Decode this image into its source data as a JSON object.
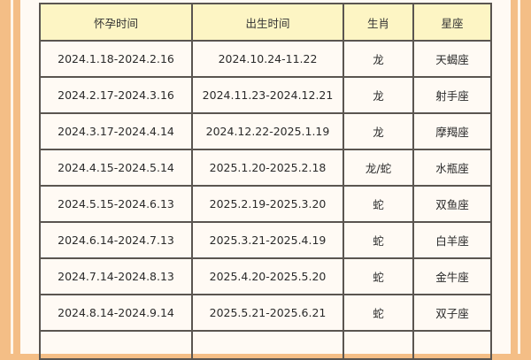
{
  "table": {
    "headers": [
      "怀孕时间",
      "出生时间",
      "生肖",
      "星座"
    ],
    "rows": [
      [
        "2024.1.18-2024.2.16",
        "2024.10.24-11.22",
        "龙",
        "天蝎座"
      ],
      [
        "2024.2.17-2024.3.16",
        "2024.11.23-2024.12.21",
        "龙",
        "射手座"
      ],
      [
        "2024.3.17-2024.4.14",
        "2024.12.22-2025.1.19",
        "龙",
        "摩羯座"
      ],
      [
        "2024.4.15-2024.5.14",
        "2025.1.20-2025.2.18",
        "龙/蛇",
        "水瓶座"
      ],
      [
        "2024.5.15-2024.6.13",
        "2025.2.19-2025.3.20",
        "蛇",
        "双鱼座"
      ],
      [
        "2024.6.14-2024.7.13",
        "2025.3.21-2025.4.19",
        "蛇",
        "白羊座"
      ],
      [
        "2024.7.14-2024.8.13",
        "2025.4.20-2025.5.20",
        "蛇",
        "金牛座"
      ],
      [
        "2024.8.14-2024.9.14",
        "2025.5.21-2025.6.21",
        "蛇",
        "双子座"
      ]
    ]
  },
  "colors": {
    "frame": "#f4be86",
    "header_bg": "#fdf5c4",
    "body_bg": "#fffaf4"
  }
}
